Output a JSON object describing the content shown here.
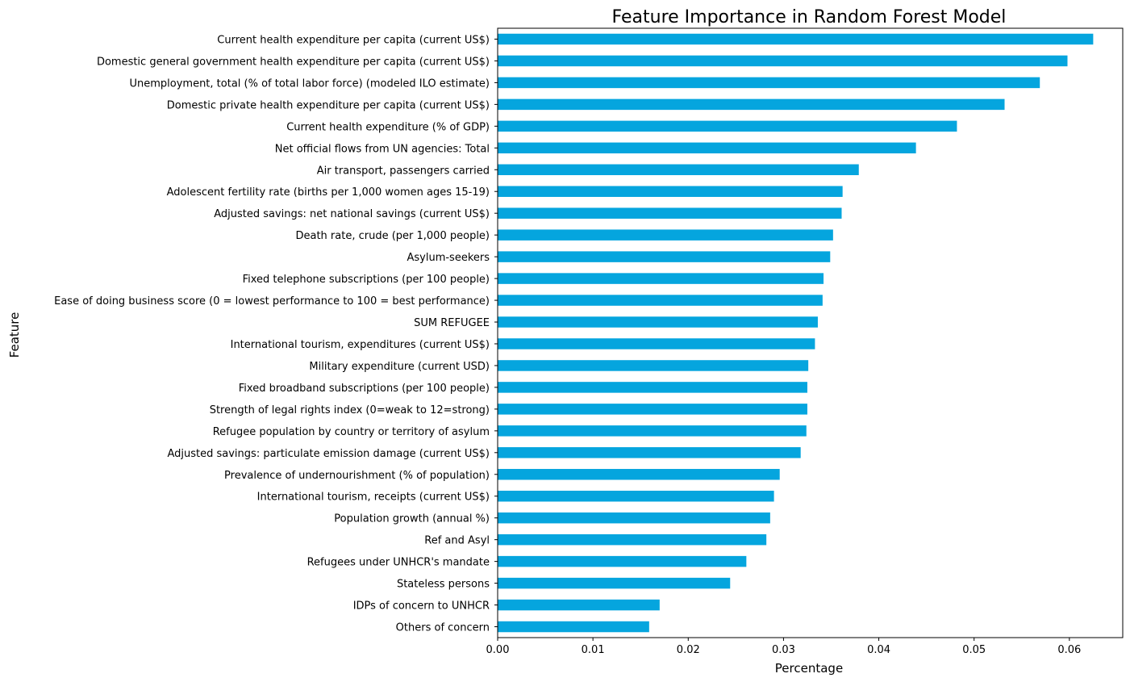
{
  "chart_data": {
    "type": "bar",
    "orientation": "horizontal",
    "title": "Feature Importance in Random Forest Model",
    "xlabel": "Percentage",
    "ylabel": "Feature",
    "xlim": [
      0,
      0.0656
    ],
    "xticks": [
      "0.00",
      "0.01",
      "0.02",
      "0.03",
      "0.04",
      "0.05",
      "0.06"
    ],
    "xtick_values": [
      0,
      0.01,
      0.02,
      0.03,
      0.04,
      0.05,
      0.06
    ],
    "grid": false,
    "bar_color": "#05a5de",
    "categories": [
      "Current health expenditure per capita (current US$)",
      "Domestic general government health expenditure per capita (current US$)",
      "Unemployment, total (% of total labor force) (modeled ILO estimate)",
      "Domestic private health expenditure per capita (current US$)",
      "Current health expenditure (% of GDP)",
      "Net official flows from UN agencies: Total",
      "Air transport, passengers carried",
      "Adolescent fertility rate (births per 1,000 women ages 15-19)",
      "Adjusted savings: net national savings (current US$)",
      "Death rate, crude (per 1,000 people)",
      "Asylum-seekers",
      "Fixed telephone subscriptions (per 100 people)",
      "Ease of doing business score (0 = lowest performance to 100 = best performance)",
      "SUM REFUGEE",
      "International tourism, expenditures (current US$)",
      "Military expenditure (current USD)",
      "Fixed broadband subscriptions (per 100 people)",
      "Strength of legal rights index (0=weak to 12=strong)",
      "Refugee population by country or territory of asylum",
      "Adjusted savings: particulate emission damage (current US$)",
      "Prevalence of undernourishment (% of population)",
      "International tourism, receipts (current US$)",
      "Population growth (annual %)",
      "Ref and Asyl",
      "Refugees under UNHCR's mandate",
      "Stateless persons",
      "IDPs of concern to UNHCR",
      "Others of concern"
    ],
    "values": [
      0.0625,
      0.0598,
      0.0569,
      0.0532,
      0.0482,
      0.0439,
      0.0379,
      0.0362,
      0.0361,
      0.0352,
      0.0349,
      0.0342,
      0.0341,
      0.0336,
      0.0333,
      0.0326,
      0.0325,
      0.0325,
      0.0324,
      0.0318,
      0.0296,
      0.029,
      0.0286,
      0.0282,
      0.0261,
      0.0244,
      0.017,
      0.0159
    ]
  }
}
